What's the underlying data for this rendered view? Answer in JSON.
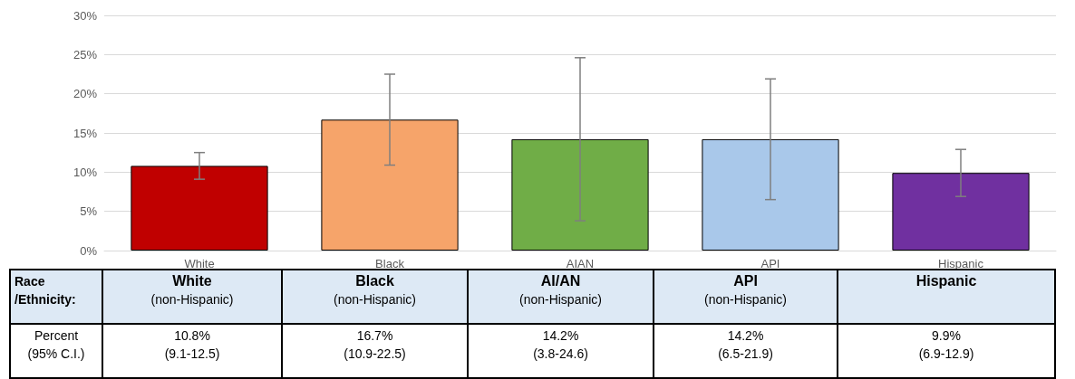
{
  "chart_data": {
    "type": "bar",
    "categories": [
      "White",
      "Black",
      "AIAN",
      "API",
      "Hispanic"
    ],
    "values": [
      10.8,
      16.7,
      14.2,
      14.2,
      9.9
    ],
    "colors": [
      "#c00000",
      "#f6a46a",
      "#70ad47",
      "#a9c8ea",
      "#7030a0"
    ],
    "errors": [
      [
        9.1,
        12.5
      ],
      [
        10.9,
        22.5
      ],
      [
        3.8,
        24.6
      ],
      [
        6.5,
        21.9
      ],
      [
        6.9,
        12.9
      ]
    ],
    "value_labels": [
      "10.8%\n(9.1-12.5)",
      "16.7%\n(10.9-22.5)",
      "14.2%\n(3.8-24.6)",
      "14.2%\n(6.5-21.9)",
      "9.9%\n(6.9-12.9)"
    ],
    "annotations": [
      "Race\n/Ethnicity:",
      "White\n(non-Hispanic)",
      "Black\n(non-Hispanic)",
      "AI/AN\n(non-Hispanic)",
      "API\n(non-Hispanic)",
      "Hispanic",
      "Percent\n(95% C.I.)"
    ],
    "ylim": [
      0,
      30
    ],
    "yticks": [
      {
        "value": 0,
        "label": "0%"
      },
      {
        "value": 5,
        "label": "5%"
      },
      {
        "value": 10,
        "label": "10%"
      },
      {
        "value": 15,
        "label": "15%"
      },
      {
        "value": 20,
        "label": "20%"
      },
      {
        "value": 25,
        "label": "25%"
      },
      {
        "value": 30,
        "label": "30%"
      }
    ],
    "grid": "y"
  }
}
